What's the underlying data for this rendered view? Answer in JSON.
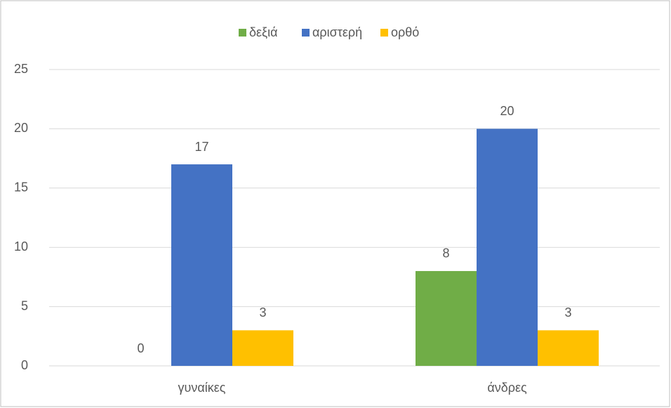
{
  "chart_data": {
    "type": "bar",
    "categories": [
      "γυναίκες",
      "άνδρες"
    ],
    "series": [
      {
        "name": "δεξιά",
        "color": "#70ad47",
        "values": [
          0,
          8
        ]
      },
      {
        "name": "αριστερή",
        "color": "#4472c4",
        "values": [
          17,
          20
        ]
      },
      {
        "name": "ορθό",
        "color": "#ffc000",
        "values": [
          3,
          3
        ]
      }
    ],
    "ylim": [
      0,
      25
    ],
    "yticks": [
      0,
      5,
      10,
      15,
      20,
      25
    ],
    "grid": true,
    "legend": "top"
  }
}
